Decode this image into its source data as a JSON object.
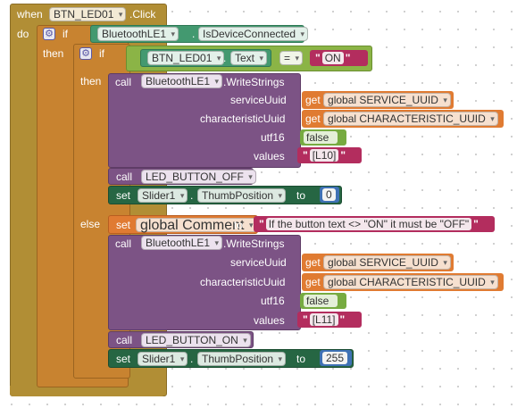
{
  "colors": {
    "event": "#b18e35",
    "control": "#c88330",
    "bluetooth": "#439970",
    "procedure": "#7c5385",
    "string": "#b32d5e",
    "logic": "#77ab41",
    "number": "#3f71b5",
    "variable": "#e07b32",
    "setter": "#266643"
  },
  "event": {
    "when": "when",
    "component": "BTN_LED01",
    "event": ".Click",
    "do": "do"
  },
  "if_outer": {
    "keyword": "if",
    "then": "then",
    "gear_icon": "gear-icon"
  },
  "condition_outer": {
    "component": "BluetoothLE1",
    "property": "IsDeviceConnected"
  },
  "if_inner": {
    "keyword": "if",
    "then": "then",
    "else": "else"
  },
  "condition_inner": {
    "component": "BTN_LED01",
    "property": "Text",
    "operator": "=",
    "value": "ON"
  },
  "call1": {
    "call": "call",
    "component": "BluetoothLE1",
    "method": ".WriteStrings",
    "params": [
      {
        "label": "serviceUuid",
        "get": "get",
        "value": "global SERVICE_UUID"
      },
      {
        "label": "characteristicUuid",
        "get": "get",
        "value": "global CHARACTERISTIC_UUID"
      },
      {
        "label": "utf16",
        "value": "false"
      },
      {
        "label": "values",
        "value": "[L10]"
      }
    ]
  },
  "call_off": {
    "call": "call",
    "procedure": "LED_BUTTON_OFF"
  },
  "set1": {
    "set": "set",
    "component": "Slider1",
    "property": "ThumbPosition",
    "to": "to",
    "value": "0"
  },
  "set_comment": {
    "set": "set",
    "variable": "global Comment",
    "to": "to",
    "value": "If the button text <> \"ON\" it must be \"OFF\""
  },
  "call2": {
    "call": "call",
    "component": "BluetoothLE1",
    "method": ".WriteStrings",
    "params": [
      {
        "label": "serviceUuid",
        "get": "get",
        "value": "global SERVICE_UUID"
      },
      {
        "label": "characteristicUuid",
        "get": "get",
        "value": "global CHARACTERISTIC_UUID"
      },
      {
        "label": "utf16",
        "value": "false"
      },
      {
        "label": "values",
        "value": "[L11]"
      }
    ]
  },
  "call_on": {
    "call": "call",
    "procedure": "LED_BUTTON_ON"
  },
  "set2": {
    "set": "set",
    "component": "Slider1",
    "property": "ThumbPosition",
    "to": "to",
    "value": "255"
  }
}
